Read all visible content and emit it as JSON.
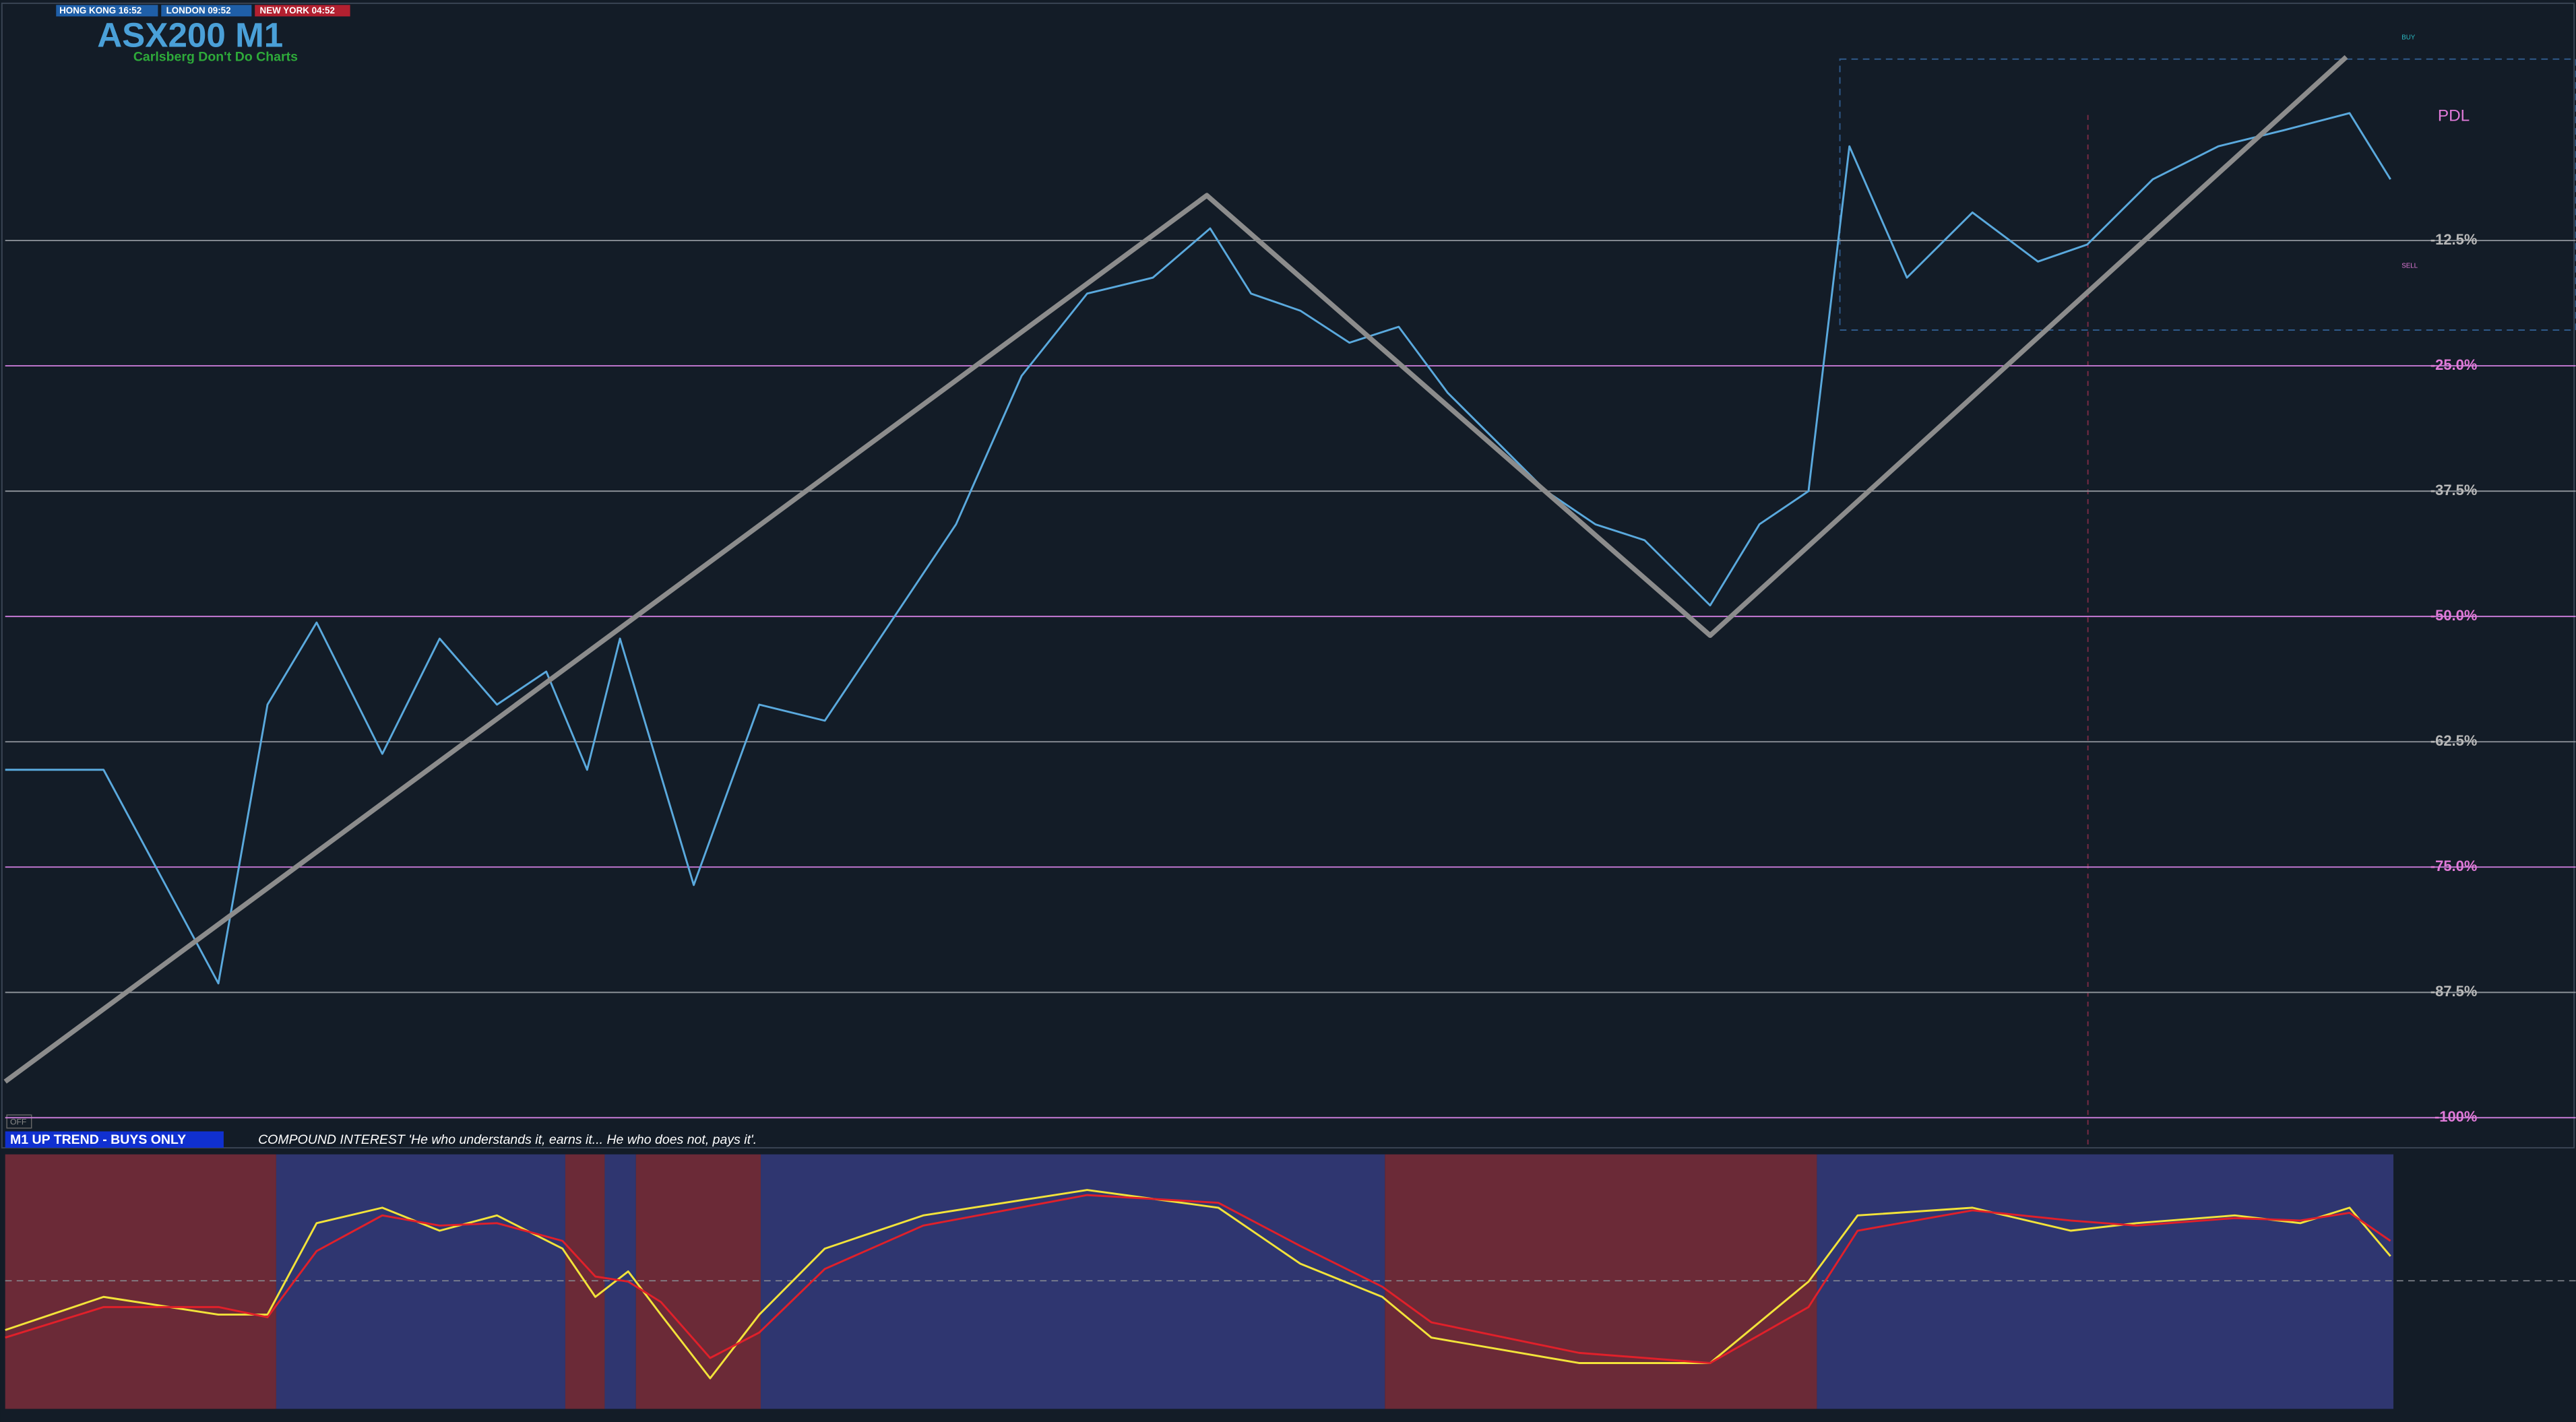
{
  "header": {
    "title": "ASX200 M1",
    "subtitle": "Carlsberg Don't Do Charts",
    "sessions": [
      "HONG KONG 16:52",
      "LONDON 09:52",
      "NEW YORK 04:52"
    ],
    "off": "OFF",
    "trend": "M1  UP TREND - BUYS ONLY",
    "quote": "COMPOUND INTEREST 'He who understands it, earns it... He who does not, pays it'.",
    "pdl": "PDL",
    "buy": "BUY",
    "sell": "SELL"
  },
  "chart_data": [
    {
      "type": "line",
      "x": [
        0,
        60,
        130,
        160,
        190,
        230,
        265,
        300,
        330,
        355,
        375,
        420,
        460,
        500,
        540,
        580,
        620,
        660,
        700,
        735,
        760,
        790,
        820,
        850,
        880,
        910,
        940,
        970,
        1000,
        1040,
        1070,
        1100,
        1125,
        1160,
        1200,
        1240,
        1270,
        1310,
        1350,
        1390,
        1430,
        1455
      ],
      "xlim": [
        0,
        1568
      ],
      "ylim": [
        -103,
        11
      ],
      "yticks": [
        {
          "value": -12.5,
          "label": "-12.5%"
        },
        {
          "value": -25,
          "label": "-25.0%"
        },
        {
          "value": -37.5,
          "label": "-37.5%"
        },
        {
          "value": -50,
          "label": "-50.0%"
        },
        {
          "value": -62.5,
          "label": "-62.5%"
        },
        {
          "value": -75,
          "label": "-75.0%"
        },
        {
          "value": -87.5,
          "label": "-87.5%"
        },
        {
          "value": -100,
          "label": "-100%"
        }
      ],
      "grid": true,
      "grid_color": "#8a8f96",
      "major_grid_color": "#c77ad6",
      "label_color": "#b8b8b8",
      "major_label_color": "#e07ad8",
      "series": [
        {
          "color": "#5aa9dd",
          "values": [
            -65.3,
            -65.3,
            -86.6,
            -58.8,
            -50.6,
            -63.7,
            -52.2,
            -58.8,
            -55.5,
            -65.3,
            -52.2,
            -76.8,
            -58.8,
            -60.4,
            -50.6,
            -40.8,
            -26.0,
            -17.8,
            -16.2,
            -11.3,
            -17.8,
            -19.5,
            -22.7,
            -21.1,
            -27.7,
            -32.6,
            -37.5,
            -40.8,
            -42.4,
            -48.9,
            -40.8,
            -37.5,
            -3.1,
            -16.2,
            -9.7,
            -14.6,
            -12.9,
            -6.4,
            -3.1,
            -1.5,
            0.2,
            -6.4
          ]
        },
        {
          "color": "#8c8c8c",
          "x": [
            0,
            733,
            1040,
            1428
          ],
          "values": [
            -96.4,
            -8.0,
            -51.9,
            5.8
          ]
        }
      ]
    },
    {
      "type": "line",
      "x": [
        0,
        60,
        130,
        160,
        190,
        230,
        265,
        300,
        340,
        360,
        380,
        400,
        430,
        460,
        500,
        560,
        660,
        740,
        790,
        840,
        870,
        960,
        1040,
        1100,
        1130,
        1200,
        1260,
        1300,
        1360,
        1400,
        1430,
        1455
      ],
      "xlim": [
        0,
        1568
      ],
      "ylim": [
        0,
        100
      ],
      "series": [
        {
          "color": "#f2e33a",
          "values": [
            31,
            44,
            37,
            37,
            73,
            79,
            70,
            76,
            63,
            44,
            54,
            37,
            12,
            37,
            63,
            76,
            86,
            79,
            57,
            44,
            28,
            18,
            18,
            50,
            76,
            79,
            70,
            73,
            76,
            73,
            79,
            60
          ]
        },
        {
          "color": "#e0202a",
          "values": [
            28,
            40,
            40,
            36,
            62,
            76,
            72,
            73,
            66,
            52,
            50,
            42,
            20,
            30,
            55,
            72,
            84,
            81,
            64,
            48,
            34,
            22,
            18,
            40,
            70,
            78,
            74,
            72,
            75,
            74,
            77,
            66
          ]
        }
      ]
    }
  ]
}
